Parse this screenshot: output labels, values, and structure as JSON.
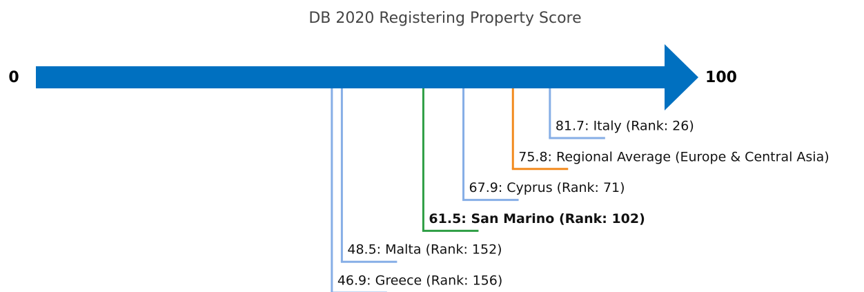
{
  "chart_data": {
    "type": "number_line",
    "title": "DB 2020 Registering Property Score",
    "xlim": [
      0,
      100
    ],
    "xticks": [
      0,
      100
    ],
    "axis_color": "#0070c0",
    "values": [
      46.9,
      48.5,
      61.5,
      67.9,
      75.8,
      81.7
    ],
    "value_labels": [
      "46.9: Greece (Rank: 156)",
      "48.5: Malta (Rank: 152)",
      "61.5: San Marino (Rank: 102)",
      "67.9: Cyprus (Rank: 71)",
      "75.8: Regional Average (Europe & Central Asia)",
      "81.7: Italy (Rank: 26)"
    ],
    "colors": [
      "#86aee6",
      "#86aee6",
      "#2e9e44",
      "#86aee6",
      "#f28a1e",
      "#86aee6"
    ],
    "bold": [
      false,
      false,
      true,
      false,
      false,
      false
    ]
  }
}
